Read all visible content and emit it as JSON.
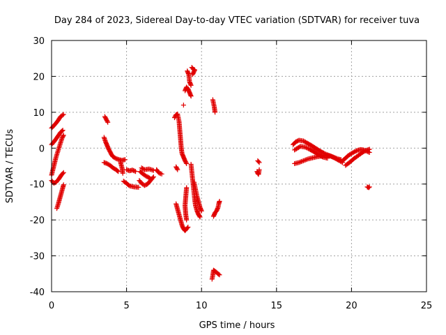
{
  "chart_data": {
    "type": "scatter",
    "title": "Day 284 of 2023, Sidereal Day-to-day VTEC variation (SDTVAR) for receiver tuva",
    "xlabel": "GPS time / hours",
    "ylabel": "SDTVAR / TECUs",
    "xlim": [
      0,
      25
    ],
    "ylim": [
      -40,
      30
    ],
    "xticks": [
      0,
      5,
      10,
      15,
      20,
      25
    ],
    "yticks": [
      -40,
      -30,
      -20,
      -10,
      0,
      10,
      20,
      30
    ],
    "grid": true,
    "marker": "plus",
    "color": "#e00000",
    "segments": [
      [
        [
          0.0,
          5.6
        ],
        [
          0.2,
          6.5
        ],
        [
          0.4,
          7.5
        ],
        [
          0.6,
          8.8
        ],
        [
          0.8,
          9.4
        ]
      ],
      [
        [
          0.0,
          1.0
        ],
        [
          0.2,
          2.0
        ],
        [
          0.4,
          3.2
        ],
        [
          0.6,
          4.4
        ],
        [
          0.75,
          5.0
        ]
      ],
      [
        [
          0.0,
          -7.5
        ],
        [
          0.15,
          -5.0
        ],
        [
          0.3,
          -2.5
        ],
        [
          0.45,
          -0.5
        ],
        [
          0.6,
          1.5
        ],
        [
          0.7,
          2.8
        ],
        [
          0.8,
          3.6
        ]
      ],
      [
        [
          0.0,
          -9.0
        ],
        [
          0.15,
          -9.8
        ],
        [
          0.3,
          -9.5
        ],
        [
          0.5,
          -8.5
        ],
        [
          0.65,
          -7.5
        ],
        [
          0.8,
          -6.8
        ]
      ],
      [
        [
          0.35,
          -16.8
        ],
        [
          0.45,
          -15.5
        ],
        [
          0.55,
          -14.0
        ],
        [
          0.65,
          -12.5
        ],
        [
          0.75,
          -11.0
        ],
        [
          0.8,
          -10.2
        ]
      ],
      [
        [
          3.55,
          8.8
        ],
        [
          3.65,
          8.0
        ],
        [
          3.75,
          7.2
        ]
      ],
      [
        [
          3.5,
          3.0
        ],
        [
          3.6,
          1.8
        ],
        [
          3.7,
          0.8
        ],
        [
          3.8,
          -0.2
        ],
        [
          3.9,
          -1.0
        ],
        [
          4.0,
          -1.8
        ],
        [
          4.1,
          -2.4
        ],
        [
          4.3,
          -2.9
        ],
        [
          4.5,
          -3.2
        ],
        [
          4.7,
          -3.4
        ],
        [
          4.9,
          -3.2
        ]
      ],
      [
        [
          3.5,
          -4.0
        ],
        [
          3.7,
          -4.3
        ],
        [
          3.9,
          -4.8
        ],
        [
          4.1,
          -5.5
        ],
        [
          4.3,
          -6.0
        ],
        [
          4.45,
          -6.5
        ]
      ],
      [
        [
          4.6,
          -4.0
        ],
        [
          4.7,
          -5.5
        ],
        [
          4.75,
          -7.0
        ]
      ],
      [
        [
          4.8,
          -9.2
        ],
        [
          5.0,
          -9.8
        ],
        [
          5.2,
          -10.5
        ],
        [
          5.5,
          -10.8
        ],
        [
          5.8,
          -10.9
        ]
      ],
      [
        [
          5.0,
          -6.0
        ],
        [
          5.2,
          -6.3
        ],
        [
          5.4,
          -6.1
        ],
        [
          5.6,
          -6.5
        ]
      ],
      [
        [
          5.9,
          -6.5
        ],
        [
          6.1,
          -7.2
        ],
        [
          6.3,
          -7.8
        ],
        [
          6.5,
          -8.2
        ],
        [
          6.6,
          -8.6
        ]
      ],
      [
        [
          5.85,
          -9.0
        ],
        [
          6.0,
          -9.8
        ],
        [
          6.2,
          -10.4
        ],
        [
          6.4,
          -10.0
        ],
        [
          6.6,
          -9.0
        ],
        [
          6.8,
          -8.0
        ]
      ],
      [
        [
          6.0,
          -5.5
        ],
        [
          6.2,
          -6.0
        ],
        [
          6.5,
          -5.8
        ],
        [
          6.8,
          -6.2
        ]
      ],
      [
        [
          7.0,
          -6.0
        ],
        [
          7.1,
          -6.6
        ],
        [
          7.2,
          -7.0
        ],
        [
          7.35,
          -7.2
        ]
      ],
      [
        [
          8.3,
          -5.2
        ],
        [
          8.4,
          -6.0
        ]
      ],
      [
        [
          8.2,
          8.5
        ],
        [
          8.3,
          9.3
        ],
        [
          8.4,
          9.5
        ],
        [
          8.5,
          7.5
        ],
        [
          8.55,
          5.0
        ],
        [
          8.6,
          2.5
        ],
        [
          8.65,
          0.0
        ],
        [
          8.7,
          -1.5
        ],
        [
          8.8,
          -2.5
        ],
        [
          8.9,
          -3.5
        ],
        [
          9.0,
          -4.3
        ]
      ],
      [
        [
          8.8,
          12.0
        ]
      ],
      [
        [
          8.9,
          16.0
        ],
        [
          9.0,
          17.0
        ],
        [
          9.1,
          16.5
        ],
        [
          9.2,
          15.5
        ],
        [
          9.3,
          14.5
        ]
      ],
      [
        [
          9.05,
          21.5
        ],
        [
          9.15,
          20.5
        ],
        [
          9.2,
          18.5
        ],
        [
          9.3,
          17.5
        ]
      ],
      [
        [
          9.35,
          22.5
        ],
        [
          9.45,
          22.0
        ],
        [
          9.55,
          21.8
        ],
        [
          9.4,
          20.5
        ]
      ],
      [
        [
          9.3,
          -4.5
        ],
        [
          9.35,
          -6.5
        ],
        [
          9.4,
          -8.5
        ],
        [
          9.45,
          -10.5
        ],
        [
          9.5,
          -12.5
        ],
        [
          9.55,
          -14.5
        ],
        [
          9.6,
          -16.0
        ],
        [
          9.7,
          -17.5
        ],
        [
          9.8,
          -18.5
        ],
        [
          9.9,
          -19.2
        ]
      ],
      [
        [
          9.5,
          -9.5
        ],
        [
          9.6,
          -11.5
        ],
        [
          9.7,
          -13.5
        ],
        [
          9.8,
          -15.0
        ],
        [
          9.9,
          -16.5
        ],
        [
          10.0,
          -17.5
        ]
      ],
      [
        [
          9.0,
          -11.0
        ],
        [
          8.95,
          -13.5
        ],
        [
          8.9,
          -16.0
        ],
        [
          8.95,
          -18.5
        ],
        [
          9.0,
          -20.0
        ]
      ],
      [
        [
          8.3,
          -15.5
        ],
        [
          8.4,
          -17.0
        ],
        [
          8.5,
          -18.5
        ],
        [
          8.6,
          -20.0
        ],
        [
          8.7,
          -21.5
        ],
        [
          8.8,
          -22.5
        ],
        [
          8.9,
          -23.0
        ],
        [
          9.0,
          -22.5
        ],
        [
          9.1,
          -22.0
        ]
      ],
      [
        [
          10.75,
          13.5
        ],
        [
          10.8,
          12.5
        ],
        [
          10.85,
          11.5
        ],
        [
          10.9,
          10.0
        ]
      ],
      [
        [
          10.8,
          -19.0
        ],
        [
          10.9,
          -18.0
        ],
        [
          11.0,
          -17.5
        ],
        [
          11.1,
          -16.5
        ],
        [
          11.15,
          -15.5
        ],
        [
          11.2,
          -14.8
        ]
      ],
      [
        [
          10.7,
          -36.5
        ],
        [
          10.75,
          -35.5
        ],
        [
          10.8,
          -34.0
        ],
        [
          10.9,
          -34.3
        ],
        [
          11.0,
          -34.6
        ],
        [
          11.1,
          -35.0
        ],
        [
          11.2,
          -35.3
        ]
      ],
      [
        [
          13.75,
          -3.5
        ],
        [
          13.85,
          -4.0
        ]
      ],
      [
        [
          13.7,
          -6.5
        ],
        [
          13.75,
          -7.0
        ],
        [
          13.8,
          -7.3
        ],
        [
          13.85,
          -6.0
        ]
      ],
      [
        [
          16.1,
          1.0
        ],
        [
          16.3,
          1.8
        ],
        [
          16.5,
          2.2
        ],
        [
          16.8,
          2.0
        ],
        [
          17.0,
          1.5
        ],
        [
          17.3,
          0.8
        ],
        [
          17.6,
          0.0
        ],
        [
          17.9,
          -0.8
        ],
        [
          18.2,
          -1.5
        ],
        [
          18.5,
          -2.0
        ],
        [
          18.8,
          -2.5
        ],
        [
          19.1,
          -3.0
        ],
        [
          19.3,
          -3.2
        ]
      ],
      [
        [
          16.2,
          -0.5
        ],
        [
          16.4,
          0.0
        ],
        [
          16.6,
          0.5
        ],
        [
          16.9,
          0.3
        ],
        [
          17.2,
          -0.3
        ],
        [
          17.5,
          -1.0
        ],
        [
          17.8,
          -1.8
        ],
        [
          18.1,
          -2.5
        ],
        [
          18.4,
          -2.8
        ]
      ],
      [
        [
          16.2,
          -4.3
        ],
        [
          16.5,
          -4.0
        ],
        [
          16.8,
          -3.5
        ],
        [
          17.1,
          -3.0
        ],
        [
          17.4,
          -2.7
        ],
        [
          17.7,
          -2.4
        ],
        [
          18.0,
          -2.2
        ],
        [
          18.3,
          -2.0
        ],
        [
          18.6,
          -2.2
        ],
        [
          18.9,
          -2.8
        ],
        [
          19.2,
          -3.5
        ],
        [
          19.4,
          -4.0
        ]
      ],
      [
        [
          19.4,
          -3.5
        ],
        [
          19.6,
          -2.8
        ],
        [
          19.8,
          -2.0
        ],
        [
          20.0,
          -1.5
        ],
        [
          20.2,
          -1.0
        ],
        [
          20.4,
          -0.6
        ],
        [
          20.6,
          -0.4
        ],
        [
          20.8,
          -0.5
        ],
        [
          21.0,
          -0.8
        ],
        [
          21.2,
          -1.2
        ]
      ],
      [
        [
          19.6,
          -4.8
        ],
        [
          19.8,
          -4.2
        ],
        [
          20.0,
          -3.5
        ],
        [
          20.2,
          -2.8
        ],
        [
          20.4,
          -2.2
        ],
        [
          20.6,
          -1.6
        ],
        [
          20.8,
          -1.0
        ],
        [
          21.0,
          -0.6
        ],
        [
          21.2,
          -0.3
        ]
      ],
      [
        [
          21.05,
          -10.8
        ],
        [
          21.15,
          -11.0
        ],
        [
          21.2,
          -10.8
        ]
      ]
    ]
  }
}
